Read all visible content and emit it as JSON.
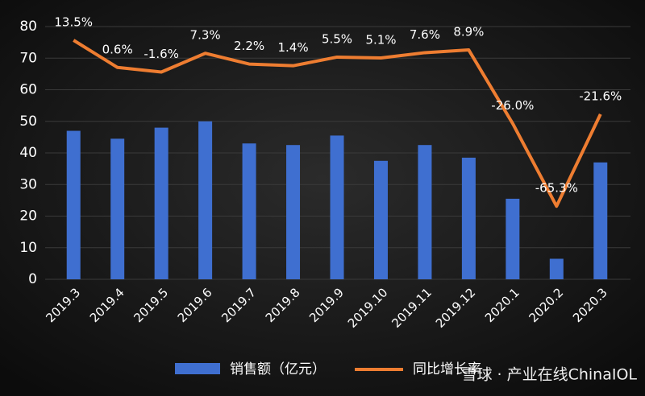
{
  "chart_data": {
    "type": "bar_line",
    "categories": [
      "2019.3",
      "2019.4",
      "2019.5",
      "2019.6",
      "2019.7",
      "2019.8",
      "2019.9",
      "2019.10",
      "2019.11",
      "2019.12",
      "2020.1",
      "2020.2",
      "2020.3"
    ],
    "series": [
      {
        "name": "销售额（亿元）",
        "color": "#3f6fd0",
        "type": "bar",
        "values": [
          47,
          44.5,
          48,
          50,
          43,
          42.5,
          45.5,
          37.5,
          42.5,
          38.5,
          25.5,
          6.5,
          37
        ]
      },
      {
        "name": "同比增长率",
        "color": "#ee7d31",
        "type": "line",
        "axis": "y2",
        "values": [
          13.5,
          0.6,
          -1.6,
          7.3,
          2.2,
          1.4,
          5.5,
          5.1,
          7.6,
          8.9,
          -26.0,
          -65.3,
          -21.6
        ],
        "value_labels": [
          "13.5%",
          "0.6%",
          "-1.6%",
          "7.3%",
          "2.2%",
          "1.4%",
          "5.5%",
          "5.1%",
          "7.6%",
          "8.9%",
          "-26.0%",
          "-65.3%",
          "-21.6%"
        ]
      }
    ],
    "ylim": [
      0,
      80
    ],
    "yticks": [
      0,
      10,
      20,
      30,
      40,
      50,
      60,
      70,
      80
    ],
    "y2lim": [
      -100,
      20
    ],
    "grid": true,
    "watermark": "雪球 · 产业在线ChinaIOL"
  }
}
